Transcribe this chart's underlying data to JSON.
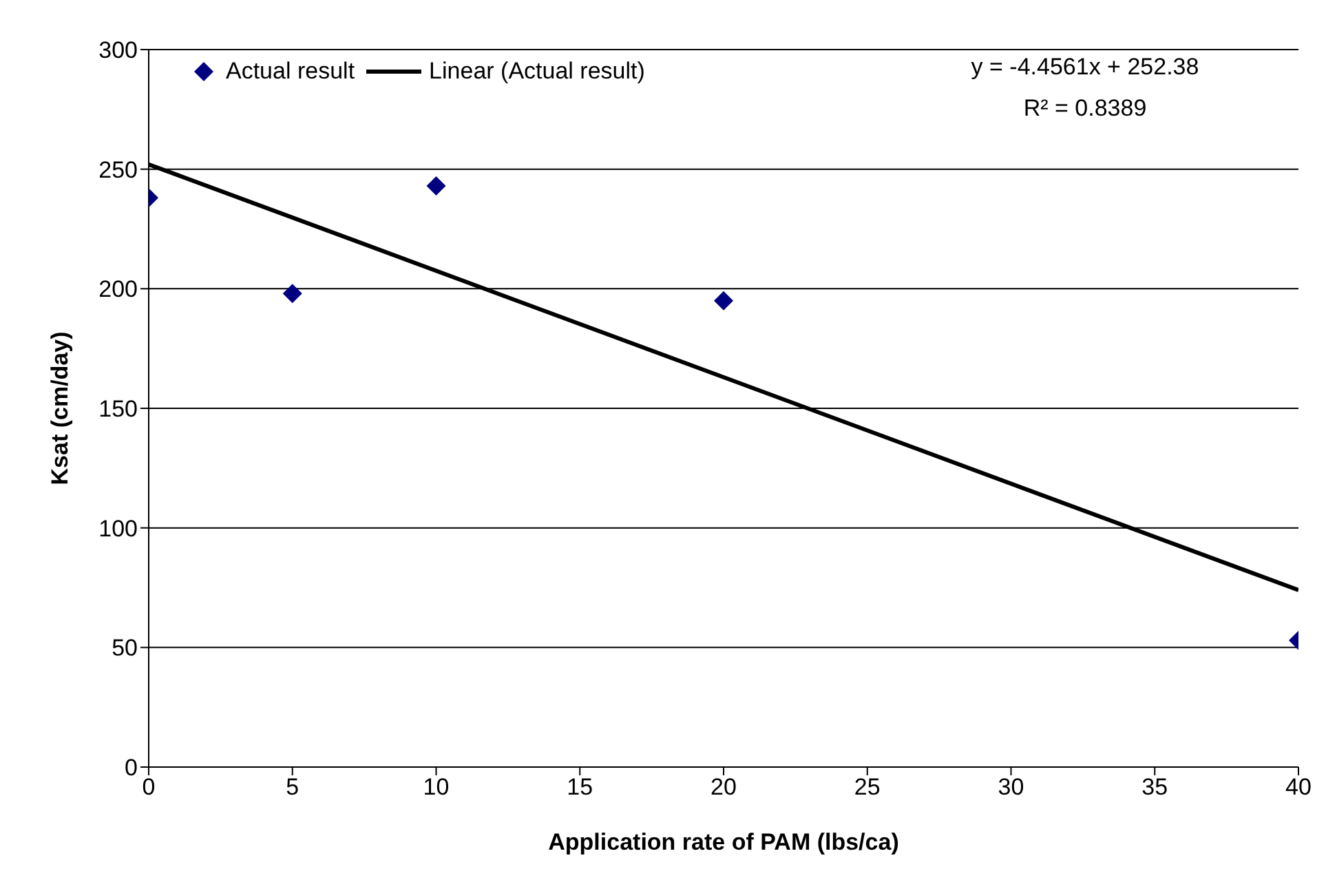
{
  "chart_data": {
    "type": "scatter",
    "xlabel": "Application rate of PAM (lbs/ca)",
    "ylabel": "Ksat (cm/day)",
    "xlim": [
      0,
      40
    ],
    "xticks": [
      0,
      5,
      10,
      15,
      20,
      25,
      30,
      35,
      40
    ],
    "ylim": [
      0,
      300
    ],
    "yticks": [
      0,
      50,
      100,
      150,
      200,
      250,
      300
    ],
    "grid": "y",
    "legend": "top left",
    "series": [
      {
        "name": "Actual result",
        "color": "#000080",
        "marker": "diamond",
        "x": [
          0,
          5,
          10,
          20,
          40
        ],
        "values": [
          238,
          198,
          243,
          195,
          53
        ]
      },
      {
        "name": "Linear (Actual result)",
        "type": "line",
        "color": "#000000",
        "marker": "none",
        "line_style": "solid",
        "x": [
          0,
          40
        ],
        "values": [
          252,
          74
        ]
      }
    ],
    "annotations": [
      "y = -4.4561x + 252.38",
      "R² = 0.8389"
    ]
  }
}
